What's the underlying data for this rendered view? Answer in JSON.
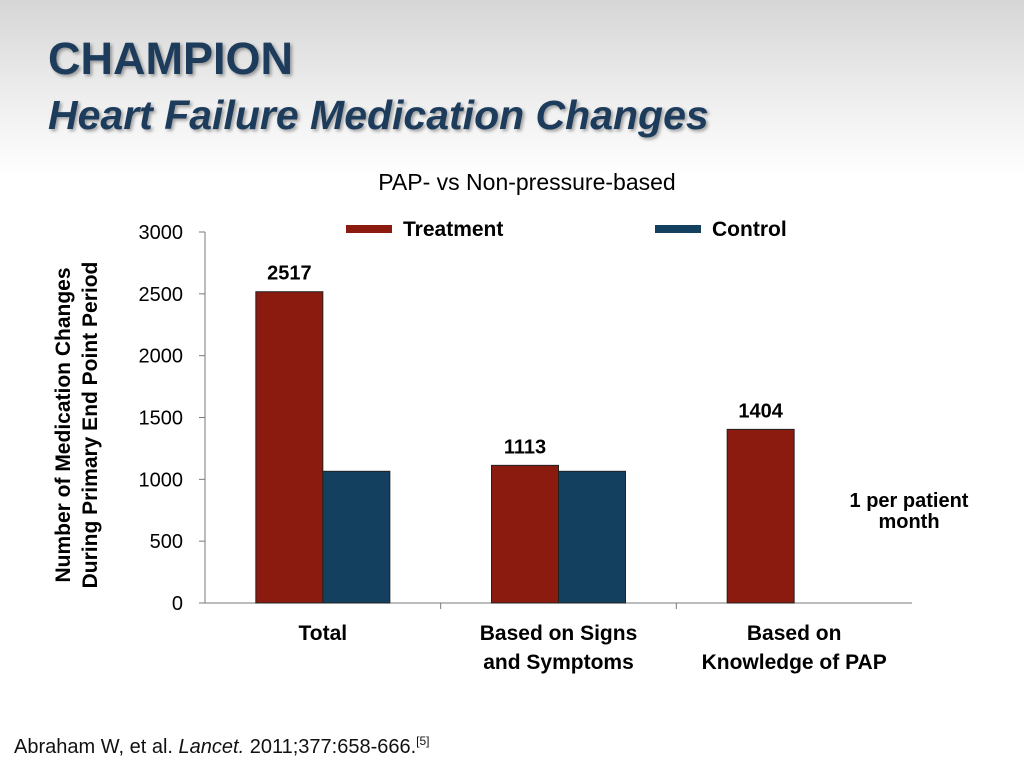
{
  "slide": {
    "title": "CHAMPION",
    "subtitle": "Heart Failure Medication Changes"
  },
  "chart_data": {
    "type": "bar",
    "title": "PAP- vs Non-pressure-based",
    "ylabel_line1": "Number of Medication Changes",
    "ylabel_line2": "During Primary End Point Period",
    "xlabel": "",
    "ylim": [
      0,
      3000
    ],
    "yticks": [
      0,
      500,
      1000,
      1500,
      2000,
      2500,
      3000
    ],
    "categories": [
      [
        "Total"
      ],
      [
        "Based on Signs",
        "and Symptoms"
      ],
      [
        "Based on",
        "Knowledge of PAP"
      ]
    ],
    "series": [
      {
        "name": "Treatment",
        "color": "#8b1a0f",
        "values": [
          2517,
          1113,
          1404
        ]
      },
      {
        "name": "Control",
        "color": "#12405e",
        "values": [
          1065,
          1065,
          null
        ]
      }
    ],
    "data_labels": [
      "2517",
      "1113",
      "1404"
    ],
    "legend_position": "top",
    "annotation": [
      "1 per patient",
      "month"
    ],
    "grid": false
  },
  "citation": {
    "authors": "Abraham W, et al.",
    "journal": "Lancet.",
    "details": "2011;377:658-666.",
    "ref": "[5]"
  }
}
